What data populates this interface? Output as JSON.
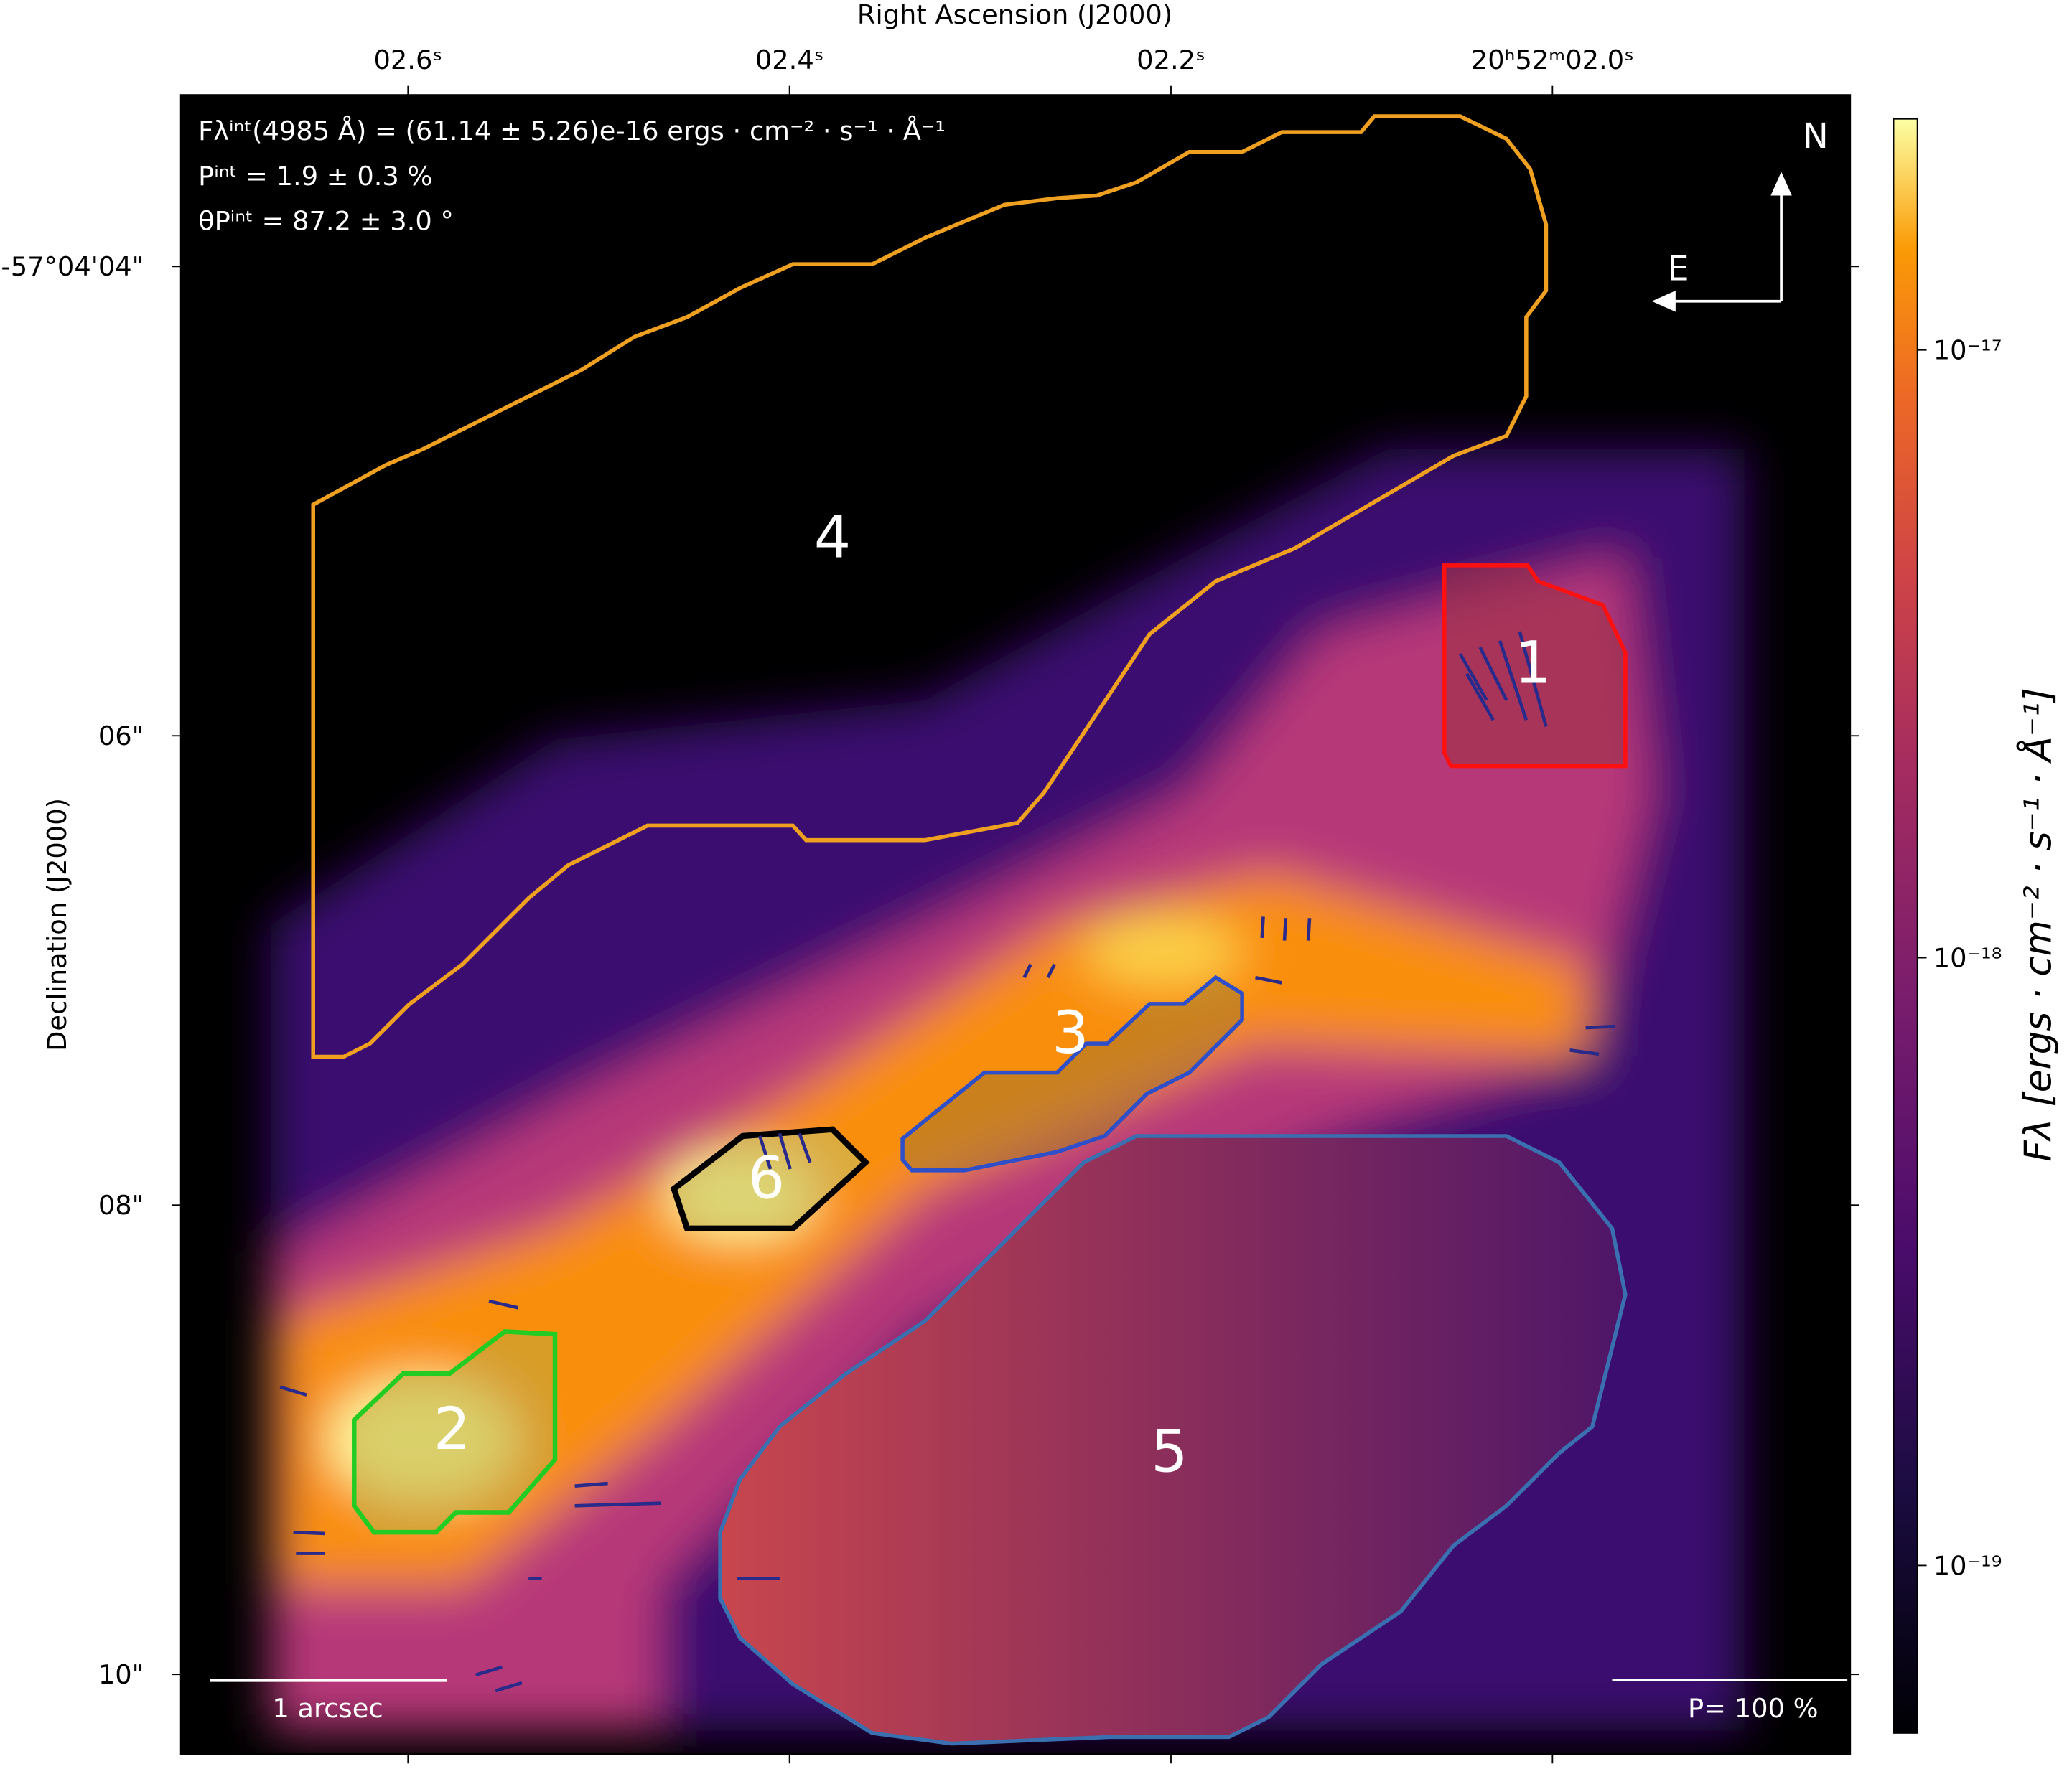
{
  "chart_data": {
    "type": "image",
    "xlabel": "Right Ascension (J2000)",
    "ylabel": "Declination (J2000)",
    "xlim": [
      2.719,
      1.844
    ],
    "xticks": [
      {
        "value": 2.6,
        "label": "02.6ˢ"
      },
      {
        "value": 2.4,
        "label": "02.4ˢ"
      },
      {
        "value": 2.2,
        "label": "02.2ˢ"
      },
      {
        "value": 2.0,
        "label": "20ʰ52ᵐ02.0ˢ"
      }
    ],
    "ylim": [
      3.27,
      10.34
    ],
    "yticks": [
      {
        "value": 4,
        "label": "-57°04'04\""
      },
      {
        "value": 6,
        "label": "06\""
      },
      {
        "value": 8,
        "label": "08\""
      },
      {
        "value": 10,
        "label": "10\""
      }
    ],
    "colorbar": {
      "label": "Fλ [ergs · cm⁻² · s⁻¹ · Å⁻¹]",
      "log": true,
      "clim": [
        5.3e-20,
        2.4e-17
      ],
      "ticks": [
        {
          "value": 1e-17,
          "label": "10⁻¹⁷"
        },
        {
          "value": 1e-18,
          "label": "10⁻¹⁸"
        },
        {
          "value": 1e-19,
          "label": "10⁻¹⁹"
        }
      ]
    },
    "annotations": [
      "Fλⁱⁿᵗ(4985 Å) = (61.14 ± 5.26)e-16 ergs · cm⁻² · s⁻¹ · Å⁻¹",
      "Pⁱⁿᵗ = 1.9 ± 0.3 %",
      "θPⁱⁿᵗ = 87.2 ± 3.0 °"
    ],
    "regions": [
      "1",
      "2",
      "3",
      "4",
      "5",
      "6"
    ],
    "compass": [
      "N",
      "E"
    ],
    "scale_bar": "1 arcsec",
    "polarization_scale": "P= 100 %"
  }
}
